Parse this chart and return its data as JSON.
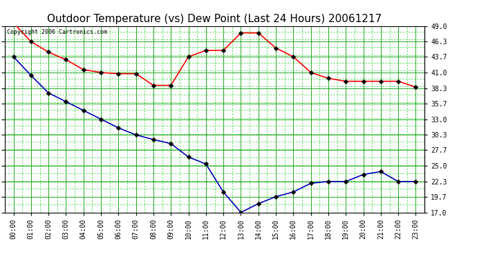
{
  "title": "Outdoor Temperature (vs) Dew Point (Last 24 Hours) 20061217",
  "copyright_text": "Copyright 2006 Cartronics.com",
  "x_labels": [
    "00:00",
    "01:00",
    "02:00",
    "03:00",
    "04:00",
    "05:00",
    "06:00",
    "07:00",
    "08:00",
    "09:00",
    "10:00",
    "11:00",
    "12:00",
    "13:00",
    "14:00",
    "15:00",
    "16:00",
    "17:00",
    "18:00",
    "19:00",
    "20:00",
    "21:00",
    "22:00",
    "23:00"
  ],
  "temp_data": [
    49.5,
    46.3,
    44.5,
    43.2,
    41.5,
    41.0,
    40.8,
    40.8,
    38.8,
    38.8,
    43.7,
    44.8,
    44.8,
    47.8,
    47.8,
    45.2,
    43.7,
    41.0,
    40.0,
    39.5,
    39.5,
    39.5,
    39.5,
    38.5
  ],
  "dew_data": [
    43.7,
    40.5,
    37.5,
    36.0,
    34.5,
    33.0,
    31.5,
    30.3,
    29.5,
    28.8,
    26.5,
    25.3,
    20.5,
    17.0,
    18.5,
    19.7,
    20.5,
    22.0,
    22.3,
    22.3,
    23.5,
    24.0,
    22.3,
    22.3
  ],
  "temp_color": "#ff0000",
  "dew_color": "#0000bb",
  "bg_color": "#ffffff",
  "plot_bg_color": "#ffffff",
  "grid_major_color": "#009900",
  "grid_minor_color": "#00cc00",
  "y_ticks": [
    17.0,
    19.7,
    22.3,
    25.0,
    27.7,
    30.3,
    33.0,
    35.7,
    38.3,
    41.0,
    43.7,
    46.3,
    49.0
  ],
  "y_min": 17.0,
  "y_max": 49.0,
  "marker_size": 3.5,
  "line_width": 1.2,
  "title_fontsize": 11,
  "tick_fontsize": 7,
  "copyright_fontsize": 6
}
